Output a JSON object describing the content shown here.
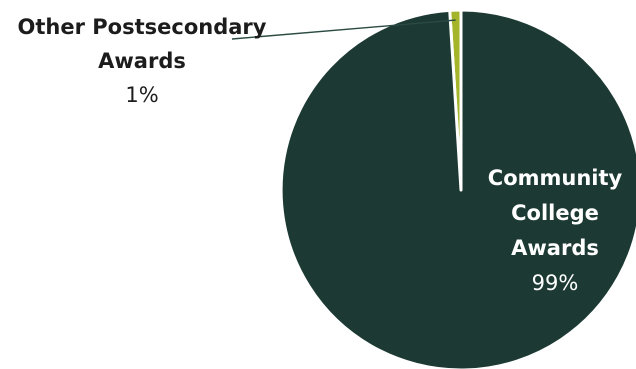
{
  "chart_data": {
    "type": "pie",
    "slices": [
      {
        "name": "Community College Awards",
        "label_lines": [
          "Community",
          "College",
          "Awards"
        ],
        "percent_label": "99%",
        "value": 99,
        "color": "#1c3a33"
      },
      {
        "name": "Other Postsecondary Awards",
        "label_lines": [
          "Other Postsecondary",
          "Awards"
        ],
        "percent_label": "1%",
        "value": 1,
        "color": "#a4b52a"
      }
    ],
    "separator_color": "#ffffff",
    "leader_line_color": "#2a4a42"
  }
}
